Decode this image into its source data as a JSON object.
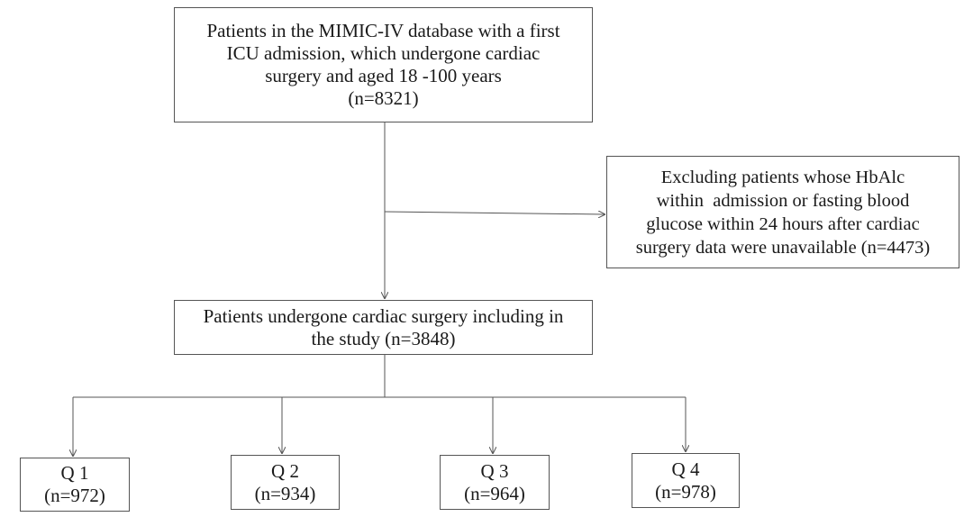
{
  "top_box": {
    "line1": "Patients in the MIMIC-IV database with a first",
    "line2": "ICU admission, which undergone cardiac",
    "line3": "surgery and aged 18 -100 years",
    "line4": "(n=8321)"
  },
  "exclusion_box": {
    "line1": "Excluding patients whose HbAlc",
    "line2": "within  admission or fasting blood",
    "line3": "glucose within 24 hours after cardiac",
    "line4": "surgery data were unavailable (n=4473)"
  },
  "study_box": {
    "line1": "Patients undergone cardiac surgery including in",
    "line2": "the study (n=3848)"
  },
  "quartiles": [
    {
      "label": "Q 1",
      "count": "(n=972)"
    },
    {
      "label": "Q 2",
      "count": "(n=934)"
    },
    {
      "label": "Q 3",
      "count": "(n=964)"
    },
    {
      "label": "Q 4",
      "count": "(n=978)"
    }
  ],
  "colors": {
    "line": "#555555",
    "text": "#1a1a1a",
    "background": "#ffffff"
  }
}
